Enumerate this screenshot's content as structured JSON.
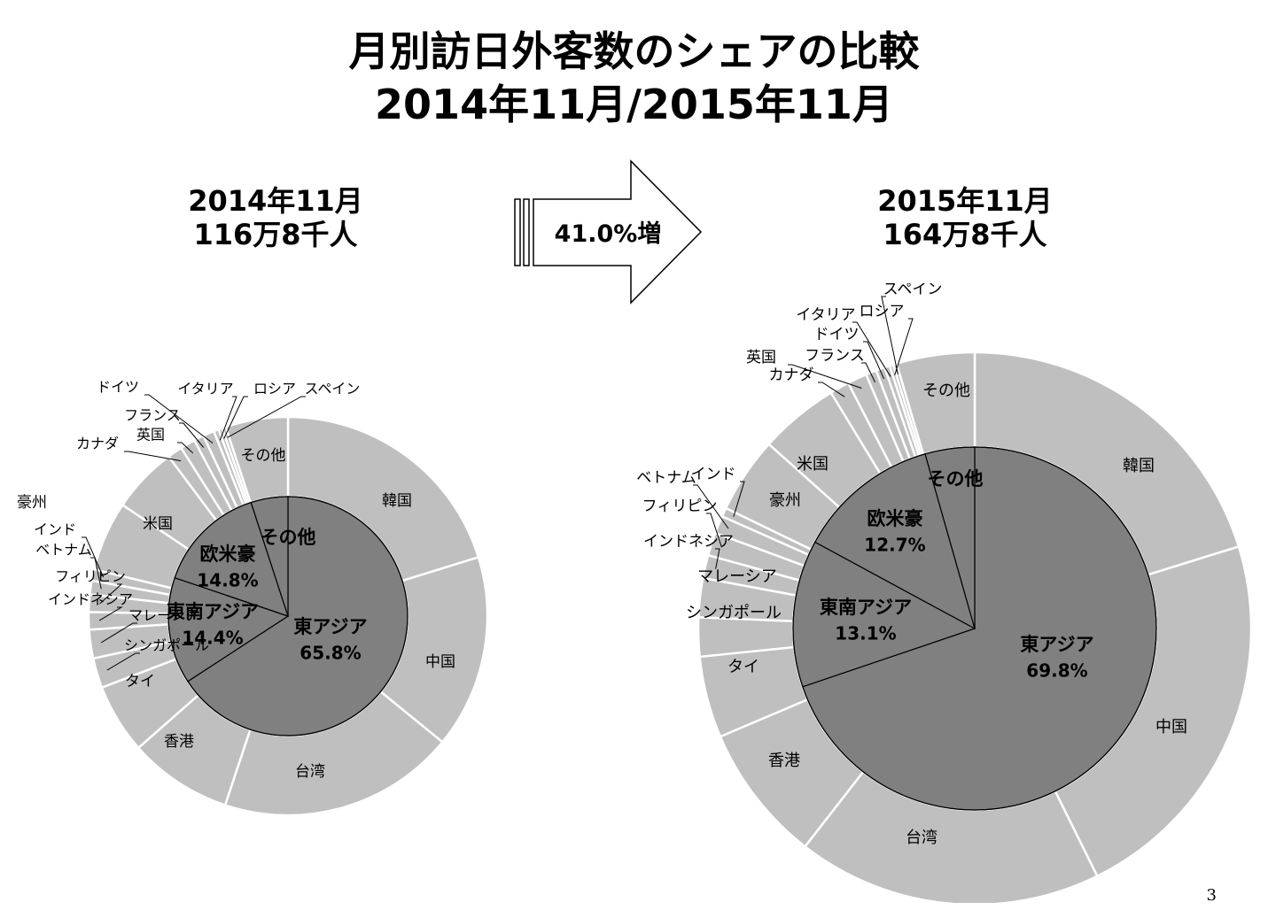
{
  "title": {
    "line1": "月別訪日外客数のシェアの比較",
    "line2": "2014年11月/2015年11月"
  },
  "left_header": {
    "month": "2014年11月",
    "total": "116万8千人"
  },
  "right_header": {
    "month": "2015年11月",
    "total": "164万8千人"
  },
  "growth_label": "41.0%増",
  "page_number": "3",
  "colors": {
    "inner": "#808080",
    "outer": "#bfbfbf",
    "border": "#ffffff"
  },
  "chart_data": [
    {
      "type": "pie",
      "title": "2014年11月",
      "inner": [
        {
          "label": "東アジア",
          "pct": "65.8%",
          "value": 65.8
        },
        {
          "label": "東南アジア",
          "pct": "14.4%",
          "value": 14.4
        },
        {
          "label": "欧米豪",
          "pct": "14.8%",
          "value": 14.8
        },
        {
          "label": "その他",
          "pct": "",
          "value": 5.0
        }
      ],
      "outer": [
        {
          "label": "韓国",
          "value": 20.0
        },
        {
          "label": "中国",
          "value": 15.5
        },
        {
          "label": "台湾",
          "value": 19.0
        },
        {
          "label": "香港",
          "value": 8.3
        },
        {
          "label": "タイ",
          "value": 5.6
        },
        {
          "label": "シンガポール",
          "value": 2.4
        },
        {
          "label": "マレーシア",
          "value": 2.3
        },
        {
          "label": "インドネシア",
          "value": 1.4
        },
        {
          "label": "フィリピン",
          "value": 1.4
        },
        {
          "label": "ベトナム",
          "value": 1.1
        },
        {
          "label": "インド",
          "value": 0.9
        },
        {
          "label": "豪州",
          "value": 5.6
        },
        {
          "label": "米国",
          "value": 5.3
        },
        {
          "label": "カナダ",
          "value": 1.2
        },
        {
          "label": "英国",
          "value": 1.2
        },
        {
          "label": "フランス",
          "value": 0.8
        },
        {
          "label": "ドイツ",
          "value": 0.9
        },
        {
          "label": "イタリア",
          "value": 0.4
        },
        {
          "label": "ロシア",
          "value": 0.3
        },
        {
          "label": "スペイン",
          "value": 0.3
        },
        {
          "label": "その他",
          "value": 5.0
        }
      ]
    },
    {
      "type": "pie",
      "title": "2015年11月",
      "inner": [
        {
          "label": "東アジア",
          "pct": "69.8%",
          "value": 69.8
        },
        {
          "label": "東南アジア",
          "pct": "13.1%",
          "value": 13.1
        },
        {
          "label": "欧米豪",
          "pct": "12.7%",
          "value": 12.7
        },
        {
          "label": "その他",
          "pct": "",
          "value": 4.4
        }
      ],
      "outer": [
        {
          "label": "韓国",
          "value": 19.5
        },
        {
          "label": "中国",
          "value": 21.7
        },
        {
          "label": "台湾",
          "value": 17.2
        },
        {
          "label": "香港",
          "value": 7.8
        },
        {
          "label": "タイ",
          "value": 4.6
        },
        {
          "label": "シンガポール",
          "value": 2.2
        },
        {
          "label": "マレーシア",
          "value": 2.2
        },
        {
          "label": "インドネシア",
          "value": 1.3
        },
        {
          "label": "フィリピン",
          "value": 1.3
        },
        {
          "label": "ベトナム",
          "value": 1.0
        },
        {
          "label": "インド",
          "value": 0.5
        },
        {
          "label": "豪州",
          "value": 4.3
        },
        {
          "label": "米国",
          "value": 4.5
        },
        {
          "label": "カナダ",
          "value": 1.1
        },
        {
          "label": "英国",
          "value": 1.1
        },
        {
          "label": "フランス",
          "value": 0.6
        },
        {
          "label": "ドイツ",
          "value": 0.5
        },
        {
          "label": "イタリア",
          "value": 0.3
        },
        {
          "label": "ロシア",
          "value": 0.2
        },
        {
          "label": "スペイン",
          "value": 0.2
        },
        {
          "label": "その他",
          "value": 4.4
        }
      ]
    }
  ]
}
